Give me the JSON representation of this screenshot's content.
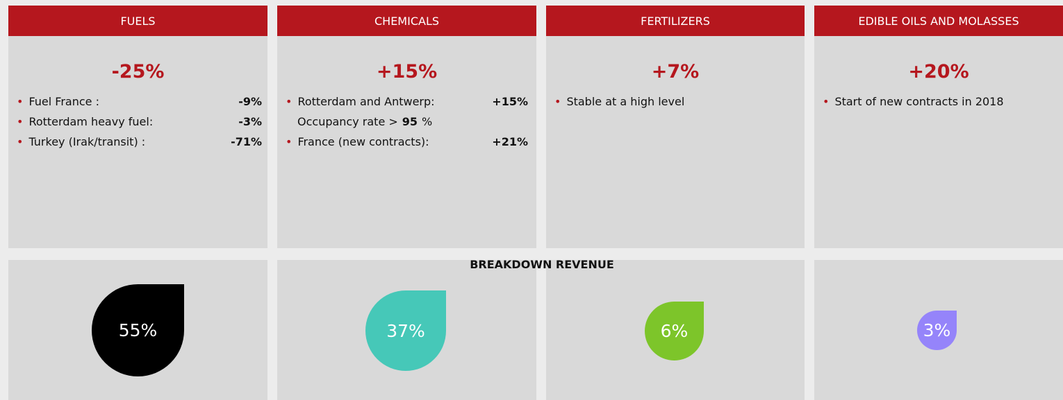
{
  "columns": [
    {
      "header": "FUELS",
      "change": "-25%",
      "bullets": [
        {
          "text": "Fuel France :",
          "value": "-9%"
        },
        {
          "text": "Rotterdam heavy fuel:",
          "value": "-3%"
        },
        {
          "text": "Turkey (Irak/transit) :",
          "value": "-71%"
        }
      ],
      "share": "55%",
      "share_color": "#000000"
    },
    {
      "header": "CHEMICALS",
      "change": "+15%",
      "bullets": [
        {
          "text": "Rotterdam and Antwerp:",
          "value": "+15%",
          "note_text": "Occupancy rate >",
          "note_value": "95",
          "note_unit": "%"
        },
        {
          "text": "France (new contracts):",
          "value": "+21%"
        }
      ],
      "share": "37%",
      "share_color": "#46c8b8"
    },
    {
      "header": "FERTILIZERS",
      "change": "+7%",
      "bullets": [
        {
          "text": "Stable at a high level"
        }
      ],
      "share": "6%",
      "share_color": "#7dc52a"
    },
    {
      "header": "EDIBLE OILS AND MOLASSES",
      "change": "+20%",
      "bullets": [
        {
          "text": "Start of new contracts in 2018"
        }
      ],
      "share": "3%",
      "share_color": "#9584fa"
    }
  ],
  "breakdown_title": "BREAKDOWN REVENUE"
}
